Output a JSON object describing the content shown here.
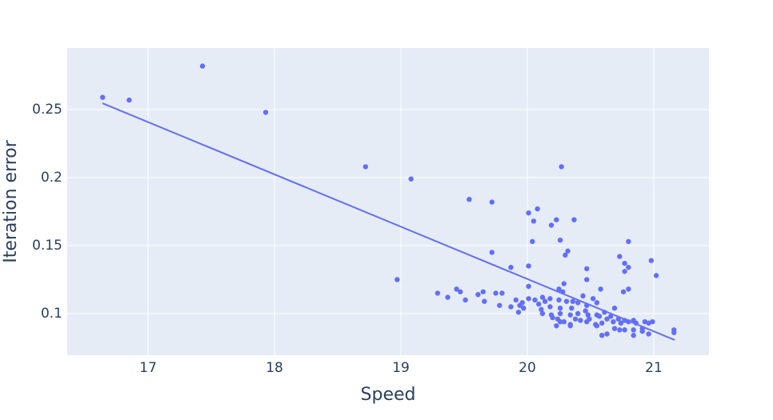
{
  "chart_data": {
    "type": "scatter",
    "x_label": "Speed",
    "y_label": "Iteration error",
    "xlim": [
      16.36,
      21.437
    ],
    "ylim": [
      0.0694,
      0.2953
    ],
    "xticks": [
      17,
      18,
      19,
      20,
      21
    ],
    "yticks": [
      0.1,
      0.15,
      0.2,
      0.25
    ],
    "grid": true,
    "background": "#e5ecf6",
    "grid_color": "#ffffff",
    "series": [
      {
        "mode": "markers",
        "color": "#636efa",
        "x": [
          16.64,
          16.85,
          17.43,
          17.93,
          18.72,
          19.08,
          18.97,
          19.54,
          19.72,
          20.27,
          20.08,
          20.01,
          20.23,
          20.05,
          20.19,
          20.37,
          20.04,
          20.26,
          20.8,
          19.72,
          20.32,
          20.3,
          20.73,
          20.98,
          19.87,
          20.01,
          20.47,
          20.77,
          20.8,
          20.77,
          21.02,
          20.47,
          20.29,
          20.01,
          20.58,
          20.25,
          19.44,
          19.47,
          19.65,
          19.29,
          19.61,
          19.75,
          19.8,
          19.37,
          20.8,
          20.76,
          20.28,
          19.51,
          19.66,
          19.91,
          19.96,
          20.01,
          20.06,
          20.12,
          20.14,
          20.18,
          20.25,
          20.31,
          20.36,
          20.4,
          20.44,
          20.52,
          20.55,
          19.78,
          19.87,
          19.94,
          19.97,
          20.09,
          20.11,
          20.18,
          20.26,
          20.35,
          20.47,
          20.46,
          20.69,
          19.93,
          20.12,
          20.19,
          20.26,
          20.34,
          20.4,
          20.48,
          20.55,
          20.61,
          20.2,
          20.24,
          20.29,
          20.38,
          20.42,
          20.49,
          20.57,
          20.63,
          20.66,
          20.72,
          20.77,
          20.84,
          20.93,
          20.99,
          20.26,
          20.34,
          20.47,
          20.54,
          20.59,
          20.68,
          20.74,
          20.8,
          20.86,
          20.96,
          20.23,
          20.34,
          20.55,
          20.69,
          20.73,
          20.77,
          20.84,
          20.91,
          20.91,
          20.96,
          20.59,
          20.63,
          20.84,
          21.16,
          21.16
        ],
        "values": [
          0.259,
          0.257,
          0.282,
          0.248,
          0.208,
          0.199,
          0.125,
          0.184,
          0.182,
          0.208,
          0.177,
          0.174,
          0.169,
          0.168,
          0.165,
          0.169,
          0.153,
          0.154,
          0.153,
          0.145,
          0.146,
          0.143,
          0.142,
          0.139,
          0.134,
          0.135,
          0.133,
          0.137,
          0.134,
          0.131,
          0.128,
          0.125,
          0.122,
          0.12,
          0.118,
          0.118,
          0.118,
          0.116,
          0.116,
          0.115,
          0.114,
          0.115,
          0.115,
          0.112,
          0.118,
          0.116,
          0.116,
          0.11,
          0.109,
          0.11,
          0.108,
          0.111,
          0.11,
          0.112,
          0.109,
          0.111,
          0.11,
          0.109,
          0.109,
          0.108,
          0.113,
          0.111,
          0.108,
          0.106,
          0.105,
          0.106,
          0.104,
          0.107,
          0.103,
          0.105,
          0.104,
          0.104,
          0.106,
          0.102,
          0.104,
          0.101,
          0.1,
          0.099,
          0.1,
          0.099,
          0.1,
          0.099,
          0.099,
          0.101,
          0.097,
          0.096,
          0.094,
          0.096,
          0.095,
          0.096,
          0.098,
          0.096,
          0.098,
          0.096,
          0.095,
          0.095,
          0.094,
          0.094,
          0.094,
          0.092,
          0.094,
          0.092,
          0.093,
          0.094,
          0.093,
          0.094,
          0.093,
          0.093,
          0.091,
          0.091,
          0.091,
          0.089,
          0.088,
          0.088,
          0.088,
          0.089,
          0.087,
          0.085,
          0.084,
          0.085,
          0.084,
          0.088,
          0.086
        ]
      },
      {
        "mode": "lines",
        "color": "#636efa",
        "x": [
          16.639,
          21.165
        ],
        "values": [
          0.2547,
          0.0806
        ]
      }
    ]
  }
}
